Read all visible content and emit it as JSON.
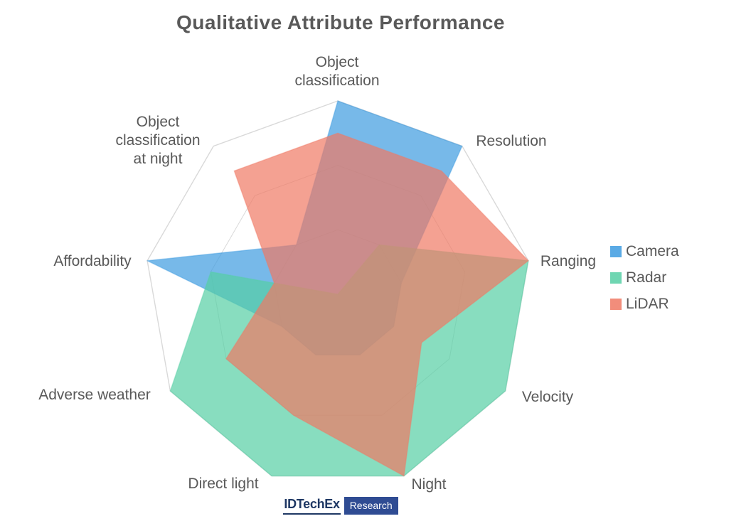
{
  "header": {
    "title": "Qualitative Attribute Performance"
  },
  "chart_data": {
    "type": "radar",
    "title": "Qualitative Attribute Performance",
    "axes": [
      "Object classification",
      "Resolution",
      "Ranging",
      "Velocity",
      "Night",
      "Direct light",
      "Adverse weather",
      "Affordability",
      "Object classification at night"
    ],
    "axis_label_lines": [
      [
        "Object",
        "classification"
      ],
      [
        "Resolution"
      ],
      [
        "Ranging"
      ],
      [
        "Velocity"
      ],
      [
        "Night"
      ],
      [
        "Direct light"
      ],
      [
        "Adverse weather"
      ],
      [
        "Affordability"
      ],
      [
        "Object",
        "classification",
        "at night"
      ]
    ],
    "scale": {
      "min": 0,
      "max": 3,
      "gridlines": [
        1,
        2,
        3
      ]
    },
    "grid_color": "#D9D9D9",
    "label_color": "#595959",
    "legend_position": "right",
    "series": [
      {
        "name": "Camera",
        "color": "#3D9BE0",
        "values": [
          3,
          3,
          1,
          1,
          1,
          1,
          1,
          3,
          1
        ]
      },
      {
        "name": "Radar",
        "color": "#56CFA4",
        "values": [
          0,
          1,
          3,
          3,
          3,
          3,
          3,
          2,
          0
        ]
      },
      {
        "name": "LiDAR",
        "color": "#F07964",
        "values": [
          2.5,
          2.5,
          3,
          1.5,
          3,
          2,
          2,
          1,
          2.5
        ]
      }
    ]
  },
  "footer": {
    "brand": "IDTechEx",
    "sub": "Research"
  }
}
